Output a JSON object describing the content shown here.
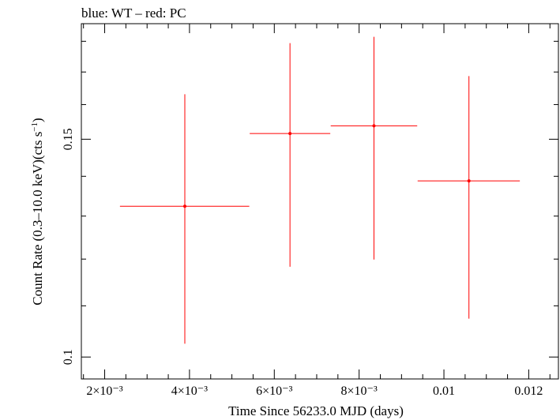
{
  "chart_data": {
    "type": "scatter",
    "title": "blue: WT – red: PC",
    "xlabel": "Time Since 56233.0 MJD (days)",
    "ylabel_main": "Count Rate (0.3–10.0 keV)(cts s",
    "ylabel_sup": "−1",
    "ylabel_close": ")",
    "y_scale": "log",
    "xlim": [
      0.00145,
      0.0127
    ],
    "ylim": [
      0.096,
      0.186
    ],
    "x_ticks": [
      {
        "value": 0.002,
        "label": "2×10⁻³"
      },
      {
        "value": 0.004,
        "label": "4×10⁻³"
      },
      {
        "value": 0.006,
        "label": "6×10⁻³"
      },
      {
        "value": 0.008,
        "label": "8×10⁻³"
      },
      {
        "value": 0.01,
        "label": "0.01"
      },
      {
        "value": 0.012,
        "label": "0.012"
      }
    ],
    "y_ticks": [
      {
        "value": 0.1,
        "label": "0.1"
      },
      {
        "value": 0.15,
        "label": "0.15"
      }
    ],
    "series": [
      {
        "color": "#ff0000",
        "points": [
          {
            "x": 0.00389,
            "xlo": 0.00236,
            "xhi": 0.00541,
            "y": 0.1324,
            "ylo": 0.1025,
            "yhi": 0.1631
          },
          {
            "x": 0.00637,
            "xlo": 0.00542,
            "xhi": 0.00732,
            "y": 0.1516,
            "ylo": 0.1183,
            "yhi": 0.1794
          },
          {
            "x": 0.00835,
            "xlo": 0.00733,
            "xhi": 0.00937,
            "y": 0.1538,
            "ylo": 0.1199,
            "yhi": 0.1815
          },
          {
            "x": 0.01059,
            "xlo": 0.00938,
            "xhi": 0.01179,
            "y": 0.1388,
            "ylo": 0.1074,
            "yhi": 0.1687
          }
        ]
      }
    ]
  }
}
